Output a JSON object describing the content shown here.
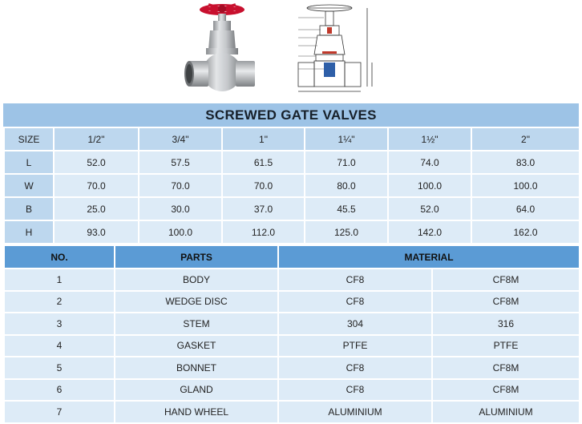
{
  "title": "SCREWED GATE VALVES",
  "dimensions": {
    "header_label": "SIZE",
    "sizes": [
      "1/2\"",
      "3/4\"",
      "1\"",
      "1¼\"",
      "1½\"",
      "2\""
    ],
    "rows": [
      {
        "label": "L",
        "values": [
          "52.0",
          "57.5",
          "61.5",
          "71.0",
          "74.0",
          "83.0"
        ]
      },
      {
        "label": "W",
        "values": [
          "70.0",
          "70.0",
          "70.0",
          "80.0",
          "100.0",
          "100.0"
        ]
      },
      {
        "label": "B",
        "values": [
          "25.0",
          "30.0",
          "37.0",
          "45.5",
          "52.0",
          "64.0"
        ]
      },
      {
        "label": "H",
        "values": [
          "93.0",
          "100.0",
          "112.0",
          "125.0",
          "142.0",
          "162.0"
        ]
      }
    ]
  },
  "parts_table": {
    "headers": {
      "no": "NO.",
      "parts": "PARTS",
      "material": "MATERIAL"
    },
    "rows": [
      {
        "no": "1",
        "part": "BODY",
        "m1": "CF8",
        "m2": "CF8M"
      },
      {
        "no": "2",
        "part": "WEDGE DISC",
        "m1": "CF8",
        "m2": "CF8M"
      },
      {
        "no": "3",
        "part": "STEM",
        "m1": "304",
        "m2": "316"
      },
      {
        "no": "4",
        "part": "GASKET",
        "m1": "PTFE",
        "m2": "PTFE"
      },
      {
        "no": "5",
        "part": "BONNET",
        "m1": "CF8",
        "m2": "CF8M"
      },
      {
        "no": "6",
        "part": "GLAND",
        "m1": "CF8",
        "m2": "CF8M"
      },
      {
        "no": "7",
        "part": "HAND WHEEL",
        "m1": "ALUMINIUM",
        "m2": "ALUMINIUM"
      }
    ]
  },
  "colors": {
    "title_band": "#9dc3e6",
    "header_cell": "#bdd7ee",
    "data_cell": "#ddebf7",
    "parts_header": "#5b9bd5",
    "handwheel": "#c8102e"
  }
}
